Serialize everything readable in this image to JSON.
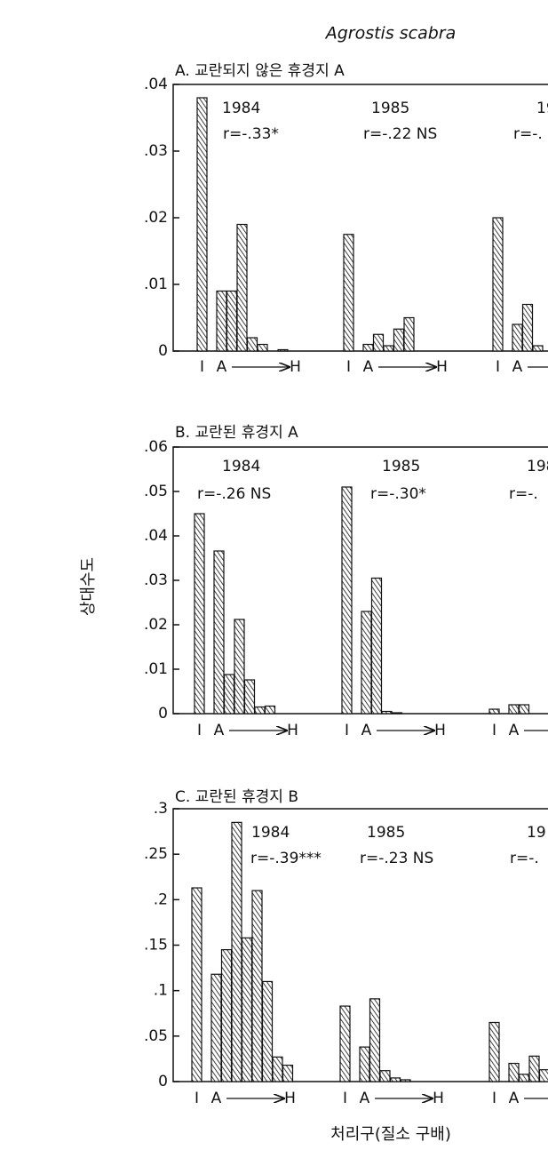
{
  "chart_data": {
    "type": "bar",
    "title": "Agrostis scabra",
    "ylabel": "상대수도",
    "xlabel": "처리구(질소 구배)",
    "panels": [
      {
        "title": "A. 교란되지 않은 휴경지 A",
        "ylim": [
          0,
          0.04
        ],
        "yticks": [
          0,
          {
            "value": 0.01,
            "label": ".01"
          },
          {
            "value": 0.02,
            "label": ".02"
          },
          {
            "value": 0.03,
            "label": ".03"
          },
          {
            "value": 0.04,
            "label": ".04"
          }
        ],
        "groups": [
          {
            "year": "1984",
            "r": "r=-.33*",
            "categories": [
              "I",
              "A",
              null,
              null,
              null,
              null,
              null,
              null,
              "H"
            ],
            "values": [
              0.038,
              0.009,
              0.009,
              0.019,
              0.002,
              0.001,
              0,
              0.0002,
              0
            ]
          },
          {
            "year": "1985",
            "r": "r=-.22 NS",
            "categories": [
              "I",
              "A",
              null,
              null,
              null,
              null,
              null,
              null,
              "H"
            ],
            "values": [
              0.0175,
              0.001,
              0.0025,
              0.0008,
              0.0033,
              0.005,
              0,
              0,
              0
            ]
          },
          {
            "year": "19",
            "r": "r=-.",
            "categories": [
              "I",
              "A",
              null,
              null
            ],
            "values": [
              0.02,
              0.004,
              0.007,
              0.0008
            ]
          }
        ]
      },
      {
        "title": "B. 교란된 휴경지 A",
        "ylim": [
          0,
          0.06
        ],
        "yticks": [
          0,
          {
            "value": 0.01,
            "label": ".01"
          },
          {
            "value": 0.02,
            "label": ".02"
          },
          {
            "value": 0.03,
            "label": ".03"
          },
          {
            "value": 0.04,
            "label": ".04"
          },
          {
            "value": 0.05,
            "label": ".05"
          },
          {
            "value": 0.06,
            "label": ".06"
          }
        ],
        "groups": [
          {
            "year": "1984",
            "r": "r=-.26 NS",
            "categories": [
              "I",
              "A",
              null,
              null,
              null,
              null,
              null,
              null,
              "H"
            ],
            "values": [
              0.045,
              0.0366,
              0.0088,
              0.0212,
              0.0076,
              0.0015,
              0.0017,
              0,
              0
            ]
          },
          {
            "year": "1985",
            "r": "r=-.30*",
            "categories": [
              "I",
              "A",
              null,
              null,
              null,
              null,
              null,
              null,
              "H"
            ],
            "values": [
              0.051,
              0.023,
              0.0305,
              0.0005,
              0.0002,
              0,
              0,
              0,
              0
            ]
          },
          {
            "year": "198",
            "r": "r=-.",
            "categories": [
              "I",
              "A",
              null,
              null
            ],
            "values": [
              0.001,
              0.002,
              0.002,
              0
            ]
          }
        ]
      },
      {
        "title": "C. 교란된 휴경지 B",
        "ylim": [
          0,
          0.3
        ],
        "yticks": [
          0,
          {
            "value": 0.05,
            "label": ".05"
          },
          {
            "value": 0.1,
            "label": ".1"
          },
          {
            "value": 0.15,
            "label": ".15"
          },
          {
            "value": 0.2,
            "label": ".2"
          },
          {
            "value": 0.25,
            "label": ".25"
          },
          {
            "value": 0.3,
            "label": ".3"
          }
        ],
        "groups": [
          {
            "year": "1984",
            "r": "r=-.39***",
            "categories": [
              "I",
              "A",
              null,
              null,
              null,
              null,
              null,
              null,
              "H"
            ],
            "values": [
              0.213,
              0.118,
              0.145,
              0.285,
              0.158,
              0.21,
              0.11,
              0.027,
              0.018
            ]
          },
          {
            "year": "1985",
            "r": "r=-.23 NS",
            "categories": [
              "I",
              "A",
              null,
              null,
              null,
              null,
              null,
              null,
              "H"
            ],
            "values": [
              0.083,
              0.038,
              0.091,
              0.012,
              0.004,
              0.002,
              0,
              0,
              0
            ]
          },
          {
            "year": "19",
            "r": "r=-.",
            "categories": [
              "I",
              "A",
              null,
              null,
              null
            ],
            "values": [
              0.065,
              0.02,
              0.008,
              0.028,
              0.013
            ]
          }
        ]
      }
    ]
  }
}
